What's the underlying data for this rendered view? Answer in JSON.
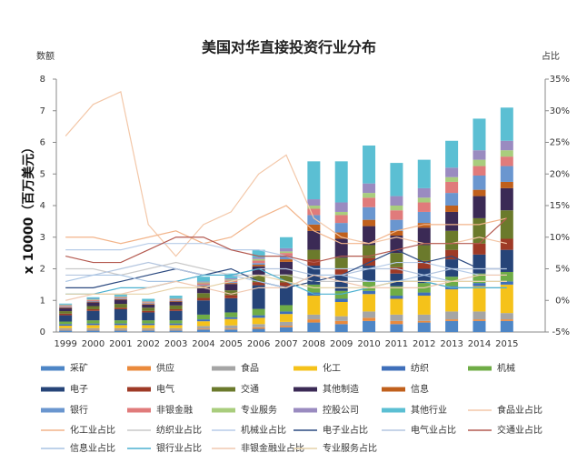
{
  "chart_data": {
    "type": "bar",
    "stacked": true,
    "title": "美国对华直接投资行业分布",
    "y_label": "数额",
    "y2_label": "占比",
    "y_axis_title": "x 10000（百万美元）",
    "categories": [
      "1999",
      "2000",
      "2001",
      "2002",
      "2003",
      "2004",
      "2005",
      "2006",
      "2007",
      "2008",
      "2009",
      "2010",
      "2011",
      "2012",
      "2013",
      "2014",
      "2015"
    ],
    "ylim": [
      0,
      8
    ],
    "yticks": [
      0,
      1,
      2,
      3,
      4,
      5,
      6,
      7,
      8
    ],
    "y2lim": [
      -5,
      35
    ],
    "y2ticks": [
      {
        "value": -5,
        "label": "-5%"
      },
      {
        "value": 0,
        "label": "0%"
      },
      {
        "value": 5,
        "label": "5%"
      },
      {
        "value": 10,
        "label": "10%"
      },
      {
        "value": 15,
        "label": "15%"
      },
      {
        "value": 20,
        "label": "20%"
      },
      {
        "value": 25,
        "label": "25%"
      },
      {
        "value": 30,
        "label": "30%"
      },
      {
        "value": 35,
        "label": "35%"
      }
    ],
    "series": [
      {
        "name": "采矿",
        "color": "#4e86c6",
        "values": [
          0.05,
          0.05,
          0.05,
          0.05,
          0.05,
          0.08,
          0.08,
          0.1,
          0.15,
          0.3,
          0.25,
          0.35,
          0.25,
          0.3,
          0.35,
          0.35,
          0.35
        ]
      },
      {
        "name": "供应",
        "color": "#ea8a3c",
        "values": [
          0.02,
          0.02,
          0.02,
          0.02,
          0.02,
          0.03,
          0.03,
          0.05,
          0.05,
          0.1,
          0.1,
          0.1,
          0.1,
          0.05,
          0.05,
          0.05,
          0.05
        ]
      },
      {
        "name": "食品",
        "color": "#a5a5a5",
        "values": [
          0.05,
          0.05,
          0.05,
          0.05,
          0.05,
          0.08,
          0.1,
          0.1,
          0.12,
          0.15,
          0.15,
          0.2,
          0.2,
          0.2,
          0.25,
          0.25,
          0.2
        ]
      },
      {
        "name": "化工",
        "color": "#f5c21a",
        "values": [
          0.08,
          0.1,
          0.1,
          0.1,
          0.1,
          0.15,
          0.2,
          0.2,
          0.25,
          0.6,
          0.45,
          0.55,
          0.5,
          0.6,
          0.7,
          0.8,
          0.9
        ]
      },
      {
        "name": "纺织",
        "color": "#3f6fba",
        "values": [
          0.05,
          0.05,
          0.05,
          0.05,
          0.05,
          0.06,
          0.06,
          0.08,
          0.08,
          0.1,
          0.1,
          0.1,
          0.1,
          0.1,
          0.1,
          0.1,
          0.1
        ]
      },
      {
        "name": "机械",
        "color": "#6fac46",
        "values": [
          0.08,
          0.1,
          0.1,
          0.1,
          0.1,
          0.15,
          0.15,
          0.2,
          0.2,
          0.25,
          0.25,
          0.3,
          0.3,
          0.3,
          0.3,
          0.3,
          0.3
        ]
      },
      {
        "name": "电子",
        "color": "#264478",
        "values": [
          0.2,
          0.3,
          0.35,
          0.25,
          0.3,
          0.45,
          0.45,
          0.75,
          0.6,
          0.6,
          0.5,
          0.5,
          0.4,
          0.45,
          0.55,
          0.6,
          0.7
        ]
      },
      {
        "name": "电气",
        "color": "#9e3a26",
        "values": [
          0.05,
          0.05,
          0.05,
          0.05,
          0.05,
          0.08,
          0.1,
          0.1,
          0.12,
          0.2,
          0.2,
          0.25,
          0.2,
          0.25,
          0.3,
          0.35,
          0.35
        ]
      },
      {
        "name": "交通",
        "color": "#6b7a2c",
        "values": [
          0.08,
          0.1,
          0.12,
          0.1,
          0.12,
          0.15,
          0.15,
          0.2,
          0.25,
          0.3,
          0.35,
          0.4,
          0.45,
          0.5,
          0.6,
          0.8,
          0.9
        ]
      },
      {
        "name": "其他制造",
        "color": "#3b2a55",
        "values": [
          0.1,
          0.12,
          0.13,
          0.1,
          0.12,
          0.2,
          0.2,
          0.3,
          0.4,
          0.6,
          0.6,
          0.6,
          0.55,
          0.55,
          0.6,
          0.7,
          0.7
        ]
      },
      {
        "name": "信息",
        "color": "#c0601c",
        "values": [
          0.02,
          0.02,
          0.02,
          0.02,
          0.02,
          0.03,
          0.03,
          0.05,
          0.08,
          0.2,
          0.2,
          0.2,
          0.15,
          0.15,
          0.2,
          0.2,
          0.2
        ]
      },
      {
        "name": "银行",
        "color": "#6a96cf",
        "values": [
          0.02,
          0.02,
          0.02,
          0.02,
          0.02,
          0.03,
          0.03,
          0.05,
          0.1,
          0.3,
          0.3,
          0.4,
          0.35,
          0.35,
          0.4,
          0.45,
          0.5
        ]
      },
      {
        "name": "非银金融",
        "color": "#e07b7b",
        "values": [
          0.03,
          0.03,
          0.03,
          0.03,
          0.03,
          0.05,
          0.05,
          0.08,
          0.1,
          0.2,
          0.25,
          0.3,
          0.3,
          0.3,
          0.35,
          0.3,
          0.3
        ]
      },
      {
        "name": "专业服务",
        "color": "#a9cd7d",
        "values": [
          0.02,
          0.02,
          0.02,
          0.02,
          0.02,
          0.03,
          0.03,
          0.05,
          0.05,
          0.1,
          0.1,
          0.15,
          0.15,
          0.15,
          0.15,
          0.2,
          0.2
        ]
      },
      {
        "name": "控股公司",
        "color": "#9a8bc0",
        "values": [
          0.02,
          0.02,
          0.02,
          0.02,
          0.02,
          0.03,
          0.04,
          0.05,
          0.1,
          0.2,
          0.3,
          0.3,
          0.3,
          0.3,
          0.3,
          0.3,
          0.3
        ]
      },
      {
        "name": "其他行业",
        "color": "#5bbfd3",
        "values": [
          0.03,
          0.05,
          0.07,
          0.07,
          0.08,
          0.15,
          0.15,
          0.24,
          0.35,
          1.2,
          1.3,
          1.2,
          1.05,
          0.9,
          0.85,
          1.0,
          1.05
        ]
      }
    ],
    "line_series": [
      {
        "name": "食品业占比",
        "color": "#f3c7a8",
        "axis": "y2",
        "values": [
          26,
          31,
          33,
          12,
          7,
          12,
          14,
          20,
          23,
          13,
          10,
          9,
          10,
          9,
          9,
          10,
          9
        ]
      },
      {
        "name": "化工业占比",
        "color": "#f2b48a",
        "axis": "y2",
        "values": [
          10,
          10,
          9,
          10,
          11,
          9,
          10,
          13,
          15,
          11,
          9,
          9,
          11,
          12,
          12,
          12,
          13
        ]
      },
      {
        "name": "纺织业占比",
        "color": "#c9c9c9",
        "axis": "y2",
        "values": [
          5,
          5,
          4,
          5,
          6,
          5,
          4,
          4,
          4,
          3,
          3,
          3,
          3,
          3,
          2,
          2,
          2
        ]
      },
      {
        "name": "机械业占比",
        "color": "#b7cce8",
        "axis": "y2",
        "values": [
          8,
          8,
          8,
          9,
          9,
          9,
          8,
          8,
          7,
          5,
          5,
          5,
          6,
          6,
          5,
          4,
          4
        ]
      },
      {
        "name": "电子业占比",
        "color": "#2c4a80",
        "axis": "y2",
        "values": [
          2,
          2,
          3,
          4,
          5,
          4,
          5,
          3,
          2,
          3,
          4,
          6,
          8,
          6,
          7,
          5,
          5
        ]
      },
      {
        "name": "电气业占比",
        "color": "#b4c6e0",
        "axis": "y2",
        "values": [
          4,
          4,
          5,
          6,
          5,
          4,
          4,
          5,
          5,
          4,
          4,
          5,
          5,
          4,
          5,
          5,
          5
        ]
      },
      {
        "name": "交通业占比",
        "color": "#b45a50",
        "axis": "y2",
        "values": [
          7,
          6,
          6,
          8,
          10,
          10,
          8,
          7,
          7,
          6,
          7,
          7,
          8,
          9,
          9,
          9,
          13
        ]
      },
      {
        "name": "信息业占比",
        "color": "#a8c4e4",
        "axis": "y2",
        "values": [
          3,
          4,
          4,
          3,
          3,
          4,
          4,
          3,
          2,
          4,
          4,
          3,
          3,
          4,
          3,
          3,
          3
        ]
      },
      {
        "name": "银行业占比",
        "color": "#4bb0d0",
        "axis": "y2",
        "values": [
          1,
          1,
          2,
          2,
          3,
          4,
          4,
          5,
          3,
          1,
          1,
          2,
          3,
          3,
          2,
          2,
          2
        ]
      },
      {
        "name": "非银金融业占比",
        "color": "#f0c8b0",
        "axis": "y2",
        "values": [
          0,
          1,
          1,
          2,
          3,
          2,
          1,
          2,
          2,
          4,
          3,
          2,
          2,
          2,
          3,
          4,
          4
        ]
      },
      {
        "name": "专业服务占比",
        "color": "#e6d2a8",
        "axis": "y2",
        "values": [
          1,
          1,
          1,
          1,
          2,
          2,
          3,
          4,
          3,
          2,
          2,
          2,
          3,
          3,
          3,
          3,
          3
        ]
      }
    ]
  }
}
